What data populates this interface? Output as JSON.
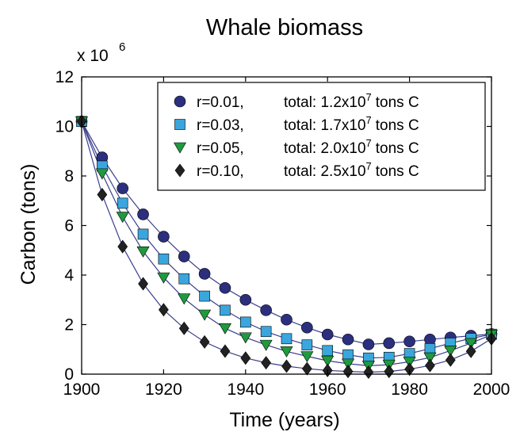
{
  "chart_data": {
    "type": "line",
    "title": "Whale biomass",
    "xlabel": "Time (years)",
    "ylabel": "Carbon (tons)",
    "y_multiplier": "x 10",
    "y_multiplier_exp": "6",
    "xlim": [
      1900,
      2000
    ],
    "ylim": [
      0,
      12000000
    ],
    "xticks": [
      "1900",
      "1920",
      "1940",
      "1960",
      "1980",
      "2000"
    ],
    "yticks": [
      "0",
      "2",
      "4",
      "6",
      "8",
      "10",
      "12"
    ],
    "grid": false,
    "legend_position": "top-right",
    "x": [
      1900,
      1905,
      1910,
      1915,
      1920,
      1925,
      1930,
      1935,
      1940,
      1945,
      1950,
      1955,
      1960,
      1965,
      1970,
      1975,
      1980,
      1985,
      1990,
      1995,
      2000
    ],
    "series": [
      {
        "name": "r=0.01,",
        "legend_total": "total: 1.2x10",
        "legend_exp": "7",
        "legend_unit": "tons C",
        "marker": "circle",
        "color": "#2b2f7e",
        "values": [
          10200000,
          8750000,
          7500000,
          6450000,
          5550000,
          4750000,
          4050000,
          3480000,
          3000000,
          2580000,
          2200000,
          1880000,
          1600000,
          1400000,
          1200000,
          1250000,
          1320000,
          1400000,
          1480000,
          1550000,
          1620000
        ]
      },
      {
        "name": "r=0.03,",
        "legend_total": "total: 1.7x10",
        "legend_exp": "7",
        "legend_unit": "tons C",
        "marker": "square",
        "color": "#3aa6dd",
        "values": [
          10200000,
          8400000,
          6900000,
          5650000,
          4650000,
          3850000,
          3150000,
          2580000,
          2100000,
          1720000,
          1430000,
          1180000,
          950000,
          780000,
          650000,
          680000,
          830000,
          1030000,
          1250000,
          1440000,
          1610000
        ]
      },
      {
        "name": "r=0.05,",
        "legend_total": "total: 2.0x10",
        "legend_exp": "7",
        "legend_unit": "tons C",
        "marker": "triangle-down",
        "color": "#1f9a3e",
        "values": [
          10200000,
          8100000,
          6350000,
          4950000,
          3900000,
          3050000,
          2400000,
          1850000,
          1480000,
          1180000,
          920000,
          720000,
          540000,
          420000,
          340000,
          380000,
          500000,
          670000,
          950000,
          1250000,
          1590000
        ]
      },
      {
        "name": "r=0.10,",
        "legend_total": "total: 2.5x10",
        "legend_exp": "7",
        "legend_unit": "tons C",
        "marker": "diamond",
        "color": "#222222",
        "values": [
          10200000,
          7250000,
          5150000,
          3650000,
          2600000,
          1850000,
          1300000,
          930000,
          650000,
          460000,
          320000,
          220000,
          150000,
          110000,
          80000,
          110000,
          200000,
          350000,
          570000,
          920000,
          1430000
        ]
      }
    ]
  }
}
